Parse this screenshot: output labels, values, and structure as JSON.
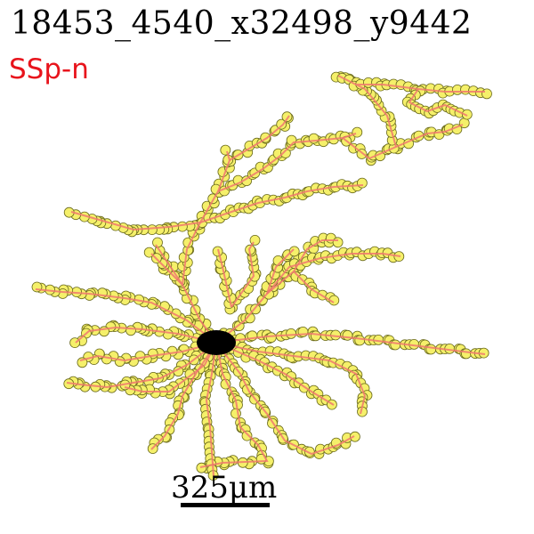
{
  "title": "18453_4540_x32498_y9442",
  "region": "SSp-n",
  "scale_bar": {
    "label": "325μm"
  },
  "colors": {
    "node_fill": "#f5f06a",
    "node_stroke": "#6b6b1e",
    "edge": "#f0786e",
    "soma": "#000000",
    "region_text": "#e8141c"
  }
}
